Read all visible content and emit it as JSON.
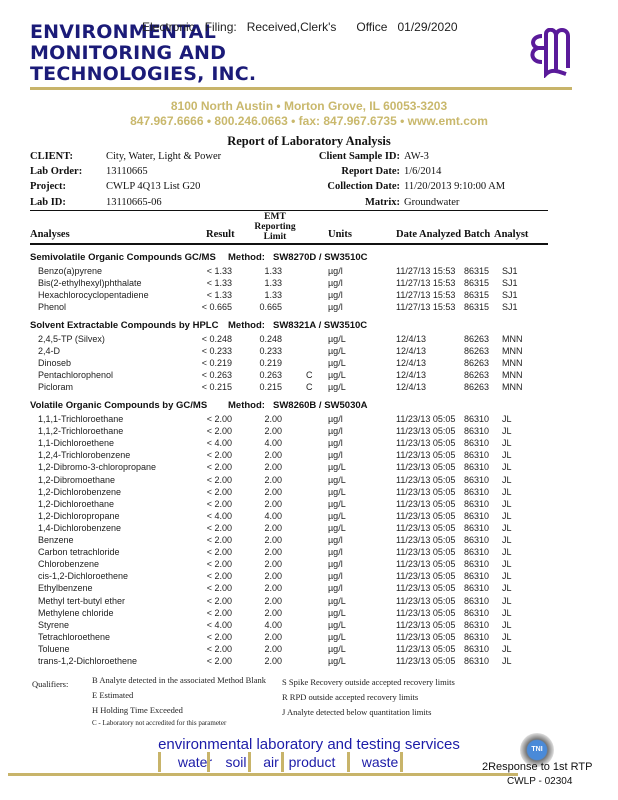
{
  "header": {
    "company_lines": [
      "ENVIRONMENTAL",
      "MONITORING AND",
      "TECHNOLOGIES, INC."
    ],
    "filing_stamp": "Electronic   Filing:   Received,Clerk's      Office   01/29/2020",
    "address": "8100 North Austin • Morton Grove, IL 60053-3203",
    "contact": "847.967.6666 • 800.246.0663 • fax: 847.967.6735 • www.emt.com",
    "logo_text": "EMT"
  },
  "report": {
    "title": "Report of Laboratory Analysis",
    "client_label": "CLIENT:",
    "client": "City, Water, Light & Power",
    "lab_order_label": "Lab Order:",
    "lab_order": "13110665",
    "project_label": "Project:",
    "project": "CWLP 4Q13 List G20",
    "lab_id_label": "Lab ID:",
    "lab_id": "13110665-06",
    "sample_id_label": "Client Sample ID:",
    "sample_id": "AW-3",
    "report_date_label": "Report Date:",
    "report_date": "1/6/2014",
    "collection_date_label": "Collection Date:",
    "collection_date": "11/20/2013 9:10:00 AM",
    "matrix_label": "Matrix:",
    "matrix": "Groundwater"
  },
  "columns": {
    "analyses": "Analyses",
    "result": "Result",
    "limit_1": "EMT",
    "limit_2": "Reporting",
    "limit_3": "Limit",
    "units": "Units",
    "date": "Date Analyzed",
    "batch": "Batch",
    "analyst": "Analyst"
  },
  "method_label": "Method:",
  "sections": [
    {
      "title": "Semivolatile Organic Compounds GC/MS",
      "method": "SW8270D / SW3510C",
      "rows": [
        [
          "Benzo(a)pyrene",
          "< 1.33",
          "1.33",
          "",
          "µg/l",
          "11/27/13 15:53",
          "86315",
          "SJ1"
        ],
        [
          "Bis(2-ethylhexyl)phthalate",
          "< 1.33",
          "1.33",
          "",
          "µg/l",
          "11/27/13 15:53",
          "86315",
          "SJ1"
        ],
        [
          "Hexachlorocyclopentadiene",
          "< 1.33",
          "1.33",
          "",
          "µg/l",
          "11/27/13 15:53",
          "86315",
          "SJ1"
        ],
        [
          "Phenol",
          "< 0.665",
          "0.665",
          "",
          "µg/l",
          "11/27/13 15:53",
          "86315",
          "SJ1"
        ]
      ]
    },
    {
      "title": "Solvent Extractable Compounds by HPLC",
      "method": "SW8321A / SW3510C",
      "rows": [
        [
          "2,4,5-TP (Silvex)",
          "< 0.248",
          "0.248",
          "",
          "µg/L",
          "12/4/13",
          "86263",
          "MNN"
        ],
        [
          "2,4-D",
          "< 0.233",
          "0.233",
          "",
          "µg/L",
          "12/4/13",
          "86263",
          "MNN"
        ],
        [
          "Dinoseb",
          "< 0.219",
          "0.219",
          "",
          "µg/L",
          "12/4/13",
          "86263",
          "MNN"
        ],
        [
          "Pentachlorophenol",
          "< 0.263",
          "0.263",
          "C",
          "µg/L",
          "12/4/13",
          "86263",
          "MNN"
        ],
        [
          "Picloram",
          "< 0.215",
          "0.215",
          "C",
          "µg/L",
          "12/4/13",
          "86263",
          "MNN"
        ]
      ]
    },
    {
      "title": "Volatile Organic Compounds by GC/MS",
      "method": "SW8260B / SW5030A",
      "rows": [
        [
          "1,1,1-Trichloroethane",
          "< 2.00",
          "2.00",
          "",
          "µg/l",
          "11/23/13 05:05",
          "86310",
          "JL"
        ],
        [
          "1,1,2-Trichloroethane",
          "< 2.00",
          "2.00",
          "",
          "µg/l",
          "11/23/13 05:05",
          "86310",
          "JL"
        ],
        [
          "1,1-Dichloroethene",
          "< 4.00",
          "4.00",
          "",
          "µg/l",
          "11/23/13 05:05",
          "86310",
          "JL"
        ],
        [
          "1,2,4-Trichlorobenzene",
          "< 2.00",
          "2.00",
          "",
          "µg/l",
          "11/23/13 05:05",
          "86310",
          "JL"
        ],
        [
          "1,2-Dibromo-3-chloropropane",
          "< 2.00",
          "2.00",
          "",
          "µg/L",
          "11/23/13 05:05",
          "86310",
          "JL"
        ],
        [
          "1,2-Dibromoethane",
          "< 2.00",
          "2.00",
          "",
          "µg/L",
          "11/23/13 05:05",
          "86310",
          "JL"
        ],
        [
          "1,2-Dichlorobenzene",
          "< 2.00",
          "2.00",
          "",
          "µg/L",
          "11/23/13 05:05",
          "86310",
          "JL"
        ],
        [
          "1,2-Dichloroethane",
          "< 2.00",
          "2.00",
          "",
          "µg/L",
          "11/23/13 05:05",
          "86310",
          "JL"
        ],
        [
          "1,2-Dichloropropane",
          "< 4.00",
          "4.00",
          "",
          "µg/L",
          "11/23/13 05:05",
          "86310",
          "JL"
        ],
        [
          "1,4-Dichlorobenzene",
          "< 2.00",
          "2.00",
          "",
          "µg/L",
          "11/23/13 05:05",
          "86310",
          "JL"
        ],
        [
          "Benzene",
          "< 2.00",
          "2.00",
          "",
          "µg/l",
          "11/23/13 05:05",
          "86310",
          "JL"
        ],
        [
          "Carbon tetrachloride",
          "< 2.00",
          "2.00",
          "",
          "µg/l",
          "11/23/13 05:05",
          "86310",
          "JL"
        ],
        [
          "Chlorobenzene",
          "< 2.00",
          "2.00",
          "",
          "µg/l",
          "11/23/13 05:05",
          "86310",
          "JL"
        ],
        [
          "cis-1,2-Dichloroethene",
          "< 2.00",
          "2.00",
          "",
          "µg/l",
          "11/23/13 05:05",
          "86310",
          "JL"
        ],
        [
          "Ethylbenzene",
          "< 2.00",
          "2.00",
          "",
          "µg/l",
          "11/23/13 05:05",
          "86310",
          "JL"
        ],
        [
          "Methyl tert-butyl ether",
          "< 2.00",
          "2.00",
          "",
          "µg/L",
          "11/23/13 05:05",
          "86310",
          "JL"
        ],
        [
          "Methylene chloride",
          "< 2.00",
          "2.00",
          "",
          "µg/L",
          "11/23/13 05:05",
          "86310",
          "JL"
        ],
        [
          "Styrene",
          "< 4.00",
          "4.00",
          "",
          "µg/L",
          "11/23/13 05:05",
          "86310",
          "JL"
        ],
        [
          "Tetrachloroethene",
          "< 2.00",
          "2.00",
          "",
          "µg/L",
          "11/23/13 05:05",
          "86310",
          "JL"
        ],
        [
          "Toluene",
          "< 2.00",
          "2.00",
          "",
          "µg/L",
          "11/23/13 05:05",
          "86310",
          "JL"
        ],
        [
          "trans-1,2-Dichloroethene",
          "< 2.00",
          "2.00",
          "",
          "µg/L",
          "11/23/13 05:05",
          "86310",
          "JL"
        ]
      ]
    }
  ],
  "qualifiers": {
    "label": "Qualifiers:",
    "left": [
      "B   Analyte detected in the associated Method Blank",
      "E   Estimated",
      "H   Holding Time Exceeded",
      "C - Laboratory not accredited for this parameter"
    ],
    "right": [
      "S   Spike Recovery outside accepted recovery limits",
      "R   RPD outside accepted recovery limits",
      "J   Analyte detected below quantitation limits"
    ]
  },
  "footer": {
    "tagline": "environmental laboratory and testing services",
    "services": [
      "water",
      "soil",
      "air",
      "product",
      "waste"
    ],
    "page_stamp": "2Response to 1st RTP",
    "bates": "CWLP - 02304",
    "badge_text": "TNI"
  },
  "colors": {
    "brand_navy": "#1b1b78",
    "gold": "#c8b46a",
    "service_blue": "#1c1ca8",
    "logo_purple": "#5a1a9a"
  }
}
